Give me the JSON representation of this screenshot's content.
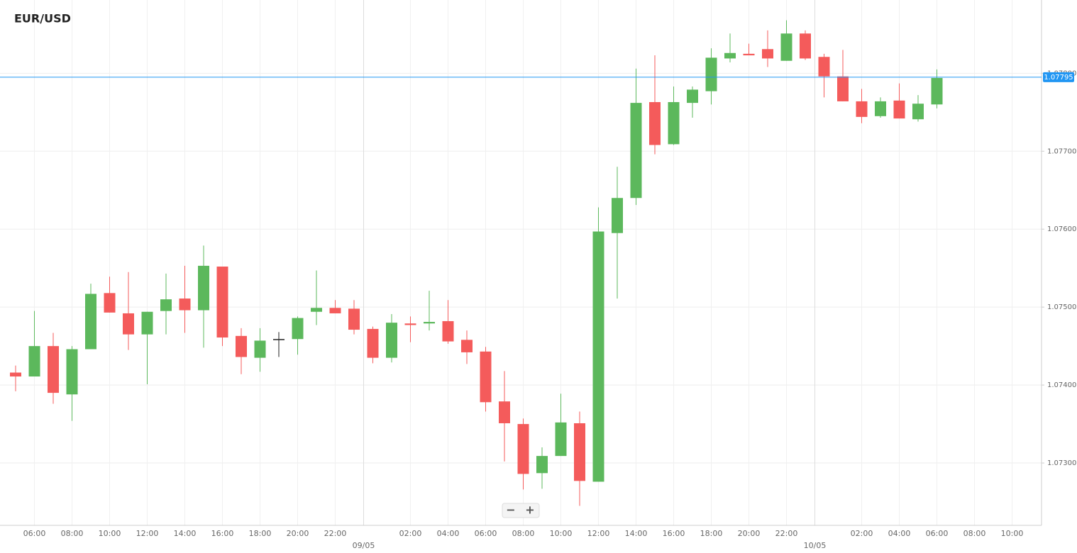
{
  "chart_data": {
    "type": "candlestick",
    "title": "EUR/USD",
    "categories": [
      null,
      "06:00",
      null,
      "08:00",
      null,
      "10:00",
      null,
      "12:00",
      null,
      "14:00",
      null,
      "16:00",
      null,
      "18:00",
      null,
      "20:00",
      null,
      "22:00",
      null,
      null,
      null,
      "02:00",
      null,
      "04:00",
      null,
      "06:00",
      null,
      "08:00",
      null,
      "10:00",
      null,
      "12:00",
      null,
      "14:00",
      null,
      "16:00",
      null,
      "18:00",
      null,
      "20:00",
      null,
      "22:00",
      null,
      null,
      null,
      "02:00",
      null,
      "04:00",
      null,
      "06:00",
      null,
      "08:00",
      null,
      "10:00"
    ],
    "open": [
      1.07416,
      1.07411,
      1.0745,
      1.07388,
      1.07446,
      1.07518,
      1.07492,
      1.07465,
      1.07495,
      1.07511,
      1.07496,
      1.07552,
      1.07463,
      1.07435,
      1.07459,
      1.07459,
      1.07494,
      1.07499,
      1.07498,
      1.07472,
      1.07435,
      1.07479,
      1.07479,
      1.07482,
      1.07458,
      1.07443,
      1.07379,
      1.0735,
      1.07287,
      1.07309,
      1.07351,
      1.07276,
      1.07595,
      1.0764,
      1.07763,
      1.07709,
      1.07762,
      1.07777,
      1.07819,
      1.07825,
      1.07831,
      1.07816,
      1.07851,
      1.07821,
      1.07796,
      1.07764,
      1.07745,
      1.07765,
      1.07741,
      1.0776,
      null,
      null,
      null,
      null
    ],
    "high": [
      1.07425,
      1.07495,
      1.07467,
      1.0745,
      1.0753,
      1.07539,
      1.07545,
      1.07494,
      1.07543,
      1.07553,
      1.07579,
      1.07552,
      1.07473,
      1.07473,
      1.07468,
      1.07488,
      1.07547,
      1.07509,
      1.07509,
      1.07475,
      1.07491,
      1.07488,
      1.07521,
      1.07509,
      1.0747,
      1.07449,
      1.07418,
      1.07357,
      1.0732,
      1.07389,
      1.07366,
      1.07628,
      1.0768,
      1.07806,
      1.07823,
      1.07783,
      1.07783,
      1.07832,
      1.07851,
      1.07838,
      1.07855,
      1.07868,
      1.07855,
      1.07825,
      1.0783,
      1.0778,
      1.07769,
      1.07787,
      1.07772,
      1.07805,
      null,
      null,
      null,
      null
    ],
    "low": [
      1.07392,
      1.07411,
      1.07376,
      1.07354,
      1.07446,
      1.07493,
      1.07445,
      1.07401,
      1.07465,
      1.07467,
      1.07448,
      1.0745,
      1.07414,
      1.07417,
      1.07436,
      1.07439,
      1.07477,
      1.07492,
      1.07465,
      1.07428,
      1.07429,
      1.07455,
      1.0747,
      1.07453,
      1.07427,
      1.07366,
      1.07302,
      1.07266,
      1.07267,
      1.07309,
      1.07245,
      1.07276,
      1.07511,
      1.07631,
      1.07696,
      1.07708,
      1.07743,
      1.0776,
      1.07814,
      1.07823,
      1.07808,
      1.07816,
      1.07817,
      1.07769,
      1.07764,
      1.07736,
      1.07743,
      1.07742,
      1.07738,
      1.07755,
      null,
      null,
      null,
      null
    ],
    "close": [
      1.07411,
      1.0745,
      1.0739,
      1.07446,
      1.07517,
      1.07493,
      1.07465,
      1.07494,
      1.0751,
      1.07496,
      1.07553,
      1.07461,
      1.07436,
      1.07457,
      1.07459,
      1.07486,
      1.07499,
      1.07492,
      1.07471,
      1.07435,
      1.0748,
      1.07477,
      1.07481,
      1.07456,
      1.07442,
      1.07378,
      1.07351,
      1.07286,
      1.07309,
      1.07352,
      1.07277,
      1.07597,
      1.0764,
      1.07762,
      1.07708,
      1.07763,
      1.07779,
      1.0782,
      1.07826,
      1.07823,
      1.07819,
      1.07851,
      1.07819,
      1.07796,
      1.07764,
      1.07744,
      1.07764,
      1.07742,
      1.07761,
      1.07794,
      null,
      null,
      null,
      null
    ],
    "up_color": "#5cb85c",
    "down_color": "#f45b5b",
    "neutral_color": "#222222",
    "ylim": [
      1.0722,
      1.07894
    ],
    "yticks": [
      {
        "value": 1.073,
        "label": "1.07300"
      },
      {
        "value": 1.074,
        "label": "1.07400"
      },
      {
        "value": 1.075,
        "label": "1.07500"
      },
      {
        "value": 1.076,
        "label": "1.07600"
      },
      {
        "value": 1.077,
        "label": "1.07700"
      },
      {
        "value": 1.078,
        "label": "1.07800"
      }
    ],
    "date_labels": [
      "09/05",
      "10/05"
    ],
    "last_price": {
      "value": 1.07795,
      "label": "1.07795",
      "color": "#2196f3"
    },
    "grid": true,
    "zoom_controls": [
      "−",
      "+"
    ]
  }
}
